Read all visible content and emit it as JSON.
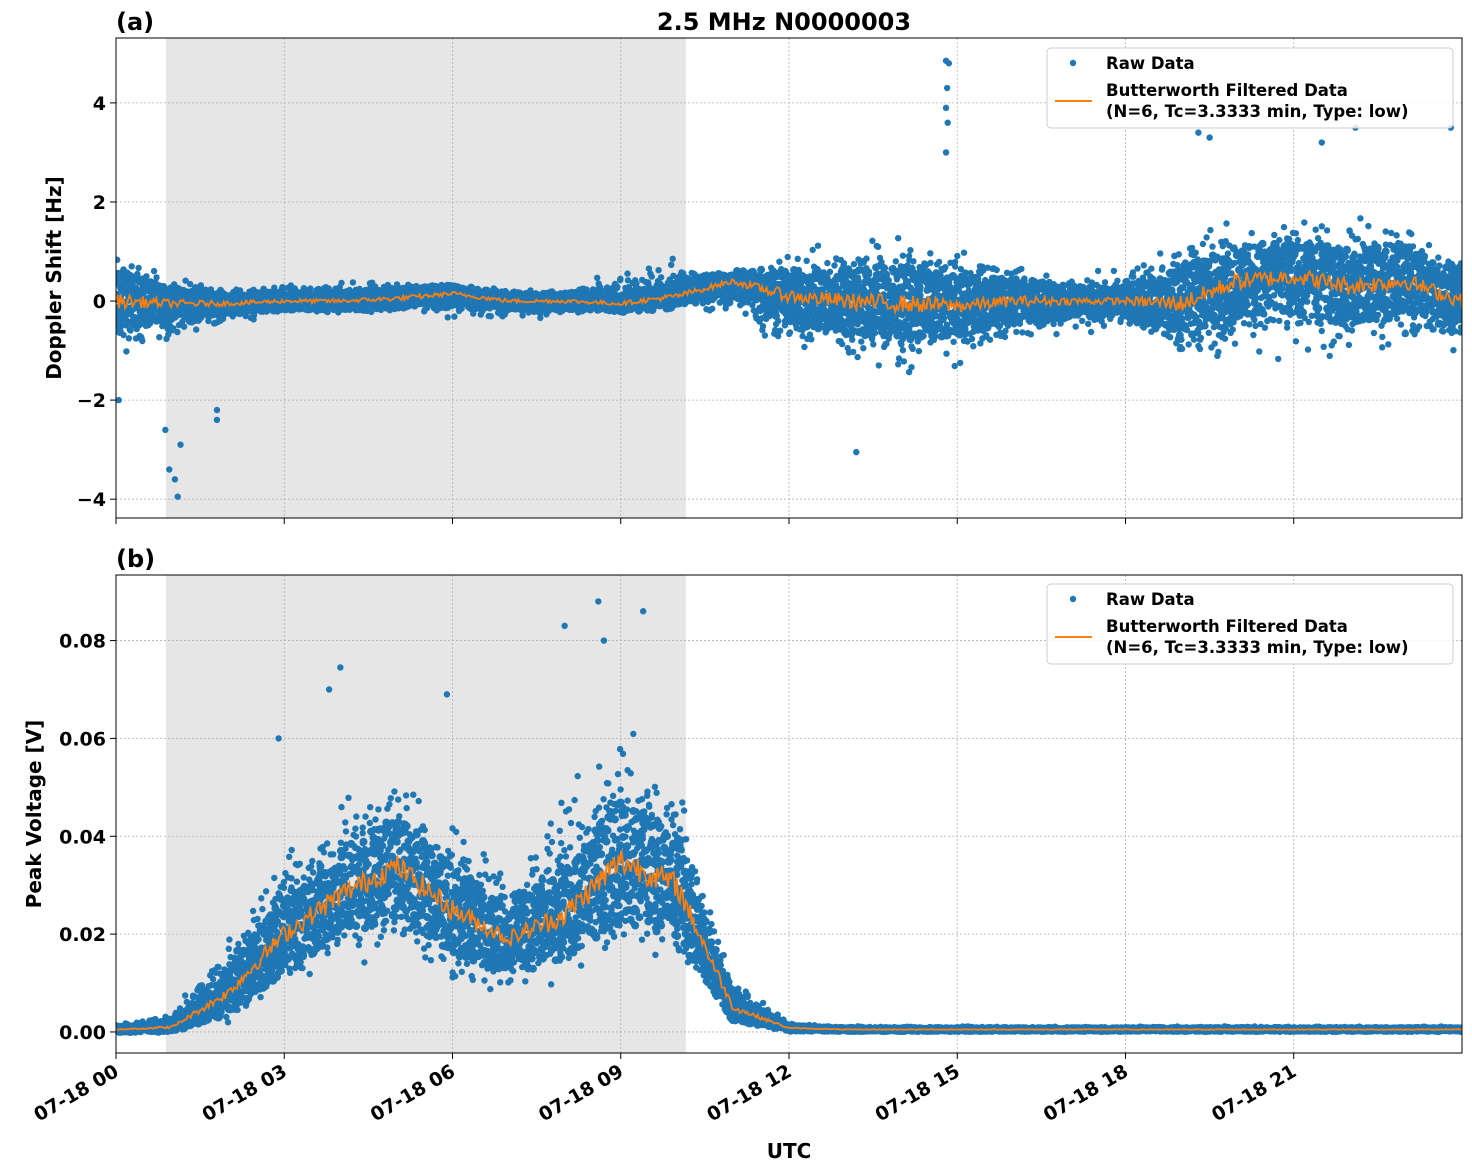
{
  "figure_title": "2.5 MHz N0000003",
  "colors": {
    "raw": "#1f77b4",
    "filtered": "#ff7f0e",
    "shade": "#e6e6e6",
    "grid": "#b0b0b0"
  },
  "chart_data": [
    {
      "type": "scatter",
      "panel_label": "(a)",
      "title": "2.5 MHz N0000003",
      "xlabel": "",
      "ylabel": "Doppler Shift [Hz]",
      "xlim_hours_utc": [
        0,
        24
      ],
      "ylim": [
        -4.38,
        5.31
      ],
      "yticks": [
        -4,
        -2,
        0,
        2,
        4
      ],
      "ytick_labels": [
        "−4",
        "−2",
        "0",
        "2",
        "4"
      ],
      "grid": true,
      "legend_placement": "top-right",
      "legend": [
        "Raw Data",
        "Butterworth Filtered Data",
        "(N=6, Tc=3.3333 min, Type: low)"
      ],
      "shaded_span_hours": [
        0.89,
        10.16
      ],
      "x_hours": [
        0,
        1,
        2,
        3,
        4,
        5,
        6,
        7,
        8,
        9,
        10,
        11,
        12,
        13,
        14,
        15,
        16,
        17,
        18,
        19,
        20,
        21,
        22,
        23,
        24
      ],
      "filtered": [
        0,
        -0.05,
        -0.05,
        0,
        0,
        0.05,
        0.15,
        0,
        0,
        -0.05,
        0.1,
        0.4,
        0.1,
        0,
        -0.05,
        -0.1,
        0,
        0,
        0,
        -0.05,
        0.4,
        0.5,
        0.3,
        0.4,
        0
      ],
      "raw_lower": [
        -1.4,
        -0.8,
        -0.5,
        -0.35,
        -0.3,
        -0.3,
        -0.4,
        -0.4,
        -0.35,
        -0.1,
        0,
        -0.4,
        -1.2,
        -1.4,
        -1.6,
        -1.3,
        -1.0,
        -0.7,
        -0.6,
        -1.2,
        -1.3,
        -1.2,
        -1.2,
        -1.1,
        -1.0
      ],
      "raw_upper": [
        1.2,
        0.5,
        0.3,
        0.35,
        0.4,
        0.5,
        0.3,
        0.25,
        0.3,
        0.6,
        1.0,
        0.5,
        1.0,
        1.3,
        1.4,
        1.1,
        0.8,
        0.6,
        0.6,
        1.8,
        1.6,
        1.6,
        1.8,
        1.6,
        1.4
      ],
      "raw_outliers": [
        [
          14.8,
          4.85
        ],
        [
          14.85,
          4.8
        ],
        [
          14.82,
          4.3
        ],
        [
          14.8,
          3.9
        ],
        [
          14.83,
          3.6
        ],
        [
          14.8,
          3.0
        ],
        [
          1.1,
          -3.95
        ],
        [
          1.05,
          -3.6
        ],
        [
          0.95,
          -3.4
        ],
        [
          1.15,
          -2.9
        ],
        [
          0.88,
          -2.6
        ],
        [
          1.8,
          -2.4
        ],
        [
          1.8,
          -2.2
        ],
        [
          13.2,
          -3.05
        ],
        [
          0.05,
          -2.0
        ],
        [
          22.1,
          3.5
        ],
        [
          23.8,
          3.5
        ],
        [
          19.3,
          3.4
        ],
        [
          19.5,
          3.3
        ],
        [
          21.5,
          3.2
        ]
      ]
    },
    {
      "type": "scatter",
      "panel_label": "(b)",
      "xlabel": "UTC",
      "ylabel": "Peak Voltage [V]",
      "xlim_hours_utc": [
        0,
        24
      ],
      "ylim": [
        -0.0043,
        0.0934
      ],
      "yticks": [
        0,
        0.02,
        0.04,
        0.06,
        0.08
      ],
      "ytick_labels": [
        "0.00",
        "0.02",
        "0.04",
        "0.06",
        "0.08"
      ],
      "xticks_hours": [
        0,
        3,
        6,
        9,
        12,
        15,
        18,
        21
      ],
      "xtick_labels": [
        "07-18 00",
        "07-18 03",
        "07-18 06",
        "07-18 09",
        "07-18 12",
        "07-18 15",
        "07-18 18",
        "07-18 21"
      ],
      "grid": true,
      "legend_placement": "top-right",
      "legend": [
        "Raw Data",
        "Butterworth Filtered Data",
        "(N=6, Tc=3.3333 min, Type: low)"
      ],
      "shaded_span_hours": [
        0.89,
        10.16
      ],
      "x_hours": [
        0,
        1,
        2,
        3,
        4,
        5,
        6,
        7,
        8,
        9,
        10,
        11,
        12,
        13,
        14,
        15,
        16,
        17,
        18,
        19,
        20,
        21,
        22,
        23,
        24
      ],
      "filtered": [
        0.0005,
        0.001,
        0.008,
        0.02,
        0.028,
        0.034,
        0.025,
        0.019,
        0.024,
        0.035,
        0.03,
        0.005,
        0.0008,
        0.0005,
        0.0005,
        0.0005,
        0.0005,
        0.0005,
        0.0005,
        0.0005,
        0.0005,
        0.0005,
        0.0005,
        0.0005,
        0.0005
      ],
      "raw_lower": [
        0,
        0,
        0.002,
        0.008,
        0.012,
        0.015,
        0.008,
        0.007,
        0.01,
        0.015,
        0.012,
        0.001,
        0,
        0,
        0,
        0,
        0,
        0,
        0,
        0,
        0,
        0,
        0,
        0,
        0
      ],
      "raw_upper": [
        0.002,
        0.004,
        0.02,
        0.04,
        0.05,
        0.055,
        0.045,
        0.035,
        0.05,
        0.065,
        0.055,
        0.012,
        0.002,
        0.0012,
        0.0012,
        0.0012,
        0.0012,
        0.0012,
        0.0012,
        0.0012,
        0.0012,
        0.0012,
        0.0012,
        0.0012,
        0.0012
      ],
      "raw_outliers": [
        [
          8.6,
          0.088
        ],
        [
          9.4,
          0.086
        ],
        [
          4.0,
          0.0745
        ],
        [
          8.0,
          0.083
        ],
        [
          8.7,
          0.08
        ],
        [
          3.8,
          0.07
        ],
        [
          2.9,
          0.06
        ],
        [
          5.9,
          0.069
        ]
      ]
    }
  ]
}
